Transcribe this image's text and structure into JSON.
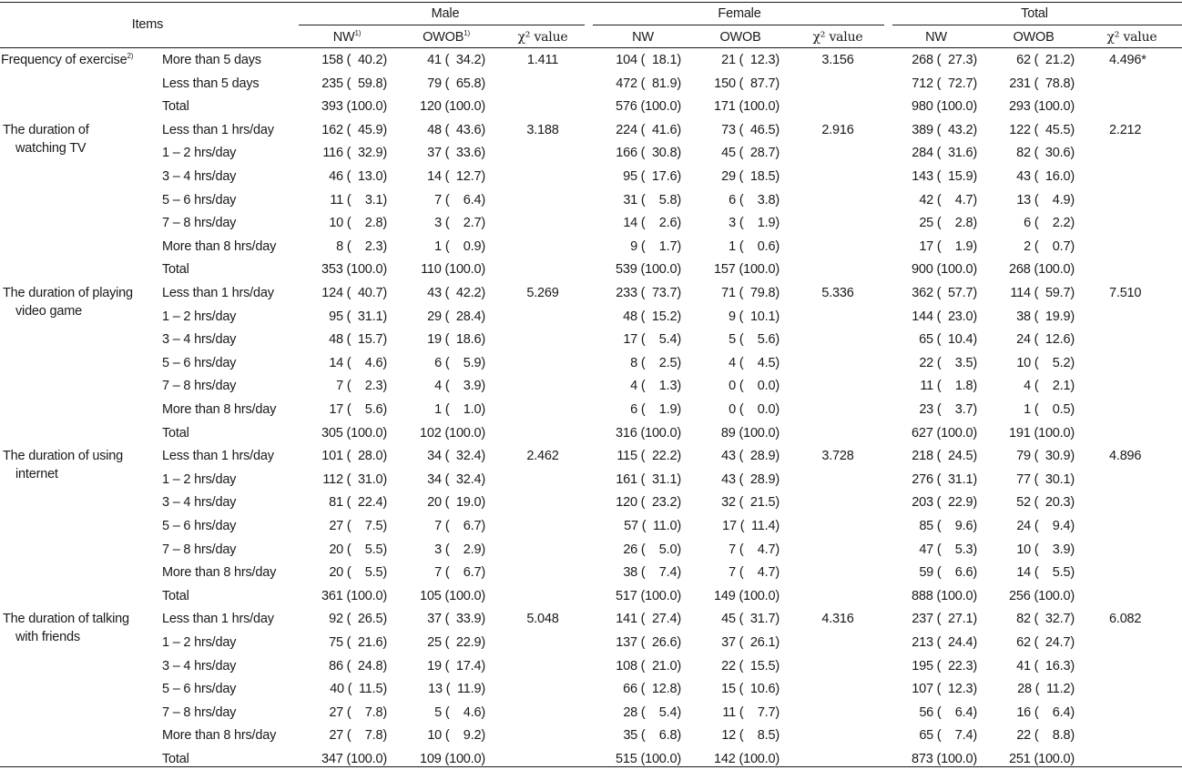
{
  "header": {
    "items_label": "Items",
    "groups": [
      "Male",
      "Female",
      "Total"
    ],
    "sub": {
      "male": [
        "NW",
        "OWOB",
        "χ² value"
      ],
      "female": [
        "NW",
        "OWOB",
        "χ² value"
      ],
      "total": [
        "NW",
        "OWOB",
        "χ² value"
      ]
    },
    "nw_sup": "1)",
    "owob_sup": "1)"
  },
  "sections": [
    {
      "title_lines": [
        "Frequency of exercise"
      ],
      "title_sup": "2)",
      "rows": [
        {
          "label": "More than 5 days",
          "m_nw": "158 (  40.2)",
          "m_ow": "41 (  34.2)",
          "m_chi": "1.411",
          "f_nw": "104 (  18.1)",
          "f_ow": "21 (  12.3)",
          "f_chi": "3.156",
          "t_nw": "268 (  27.3)",
          "t_ow": "62 (  21.2)",
          "t_chi": "4.496*"
        },
        {
          "label": "Less than 5 days",
          "m_nw": "235 (  59.8)",
          "m_ow": "79 (  65.8)",
          "m_chi": "",
          "f_nw": "472 (  81.9)",
          "f_ow": "150 (  87.7)",
          "f_chi": "",
          "t_nw": "712 (  72.7)",
          "t_ow": "231 (  78.8)",
          "t_chi": ""
        },
        {
          "label": "Total",
          "m_nw": "393 (100.0)",
          "m_ow": "120 (100.0)",
          "m_chi": "",
          "f_nw": "576 (100.0)",
          "f_ow": "171 (100.0)",
          "f_chi": "",
          "t_nw": "980 (100.0)",
          "t_ow": "293 (100.0)",
          "t_chi": ""
        }
      ]
    },
    {
      "title_lines": [
        "The duration of",
        "watching TV"
      ],
      "title_sup": "",
      "rows": [
        {
          "label": "Less than 1 hrs/day",
          "m_nw": "162 (  45.9)",
          "m_ow": "48 (  43.6)",
          "m_chi": "3.188",
          "f_nw": "224 (  41.6)",
          "f_ow": "73 (  46.5)",
          "f_chi": "2.916",
          "t_nw": "389 (  43.2)",
          "t_ow": "122 (  45.5)",
          "t_chi": "2.212"
        },
        {
          "label": "1 – 2 hrs/day",
          "m_nw": "116 (  32.9)",
          "m_ow": "37 (  33.6)",
          "m_chi": "",
          "f_nw": "166 (  30.8)",
          "f_ow": "45 (  28.7)",
          "f_chi": "",
          "t_nw": "284 (  31.6)",
          "t_ow": "82 (  30.6)",
          "t_chi": ""
        },
        {
          "label": "3 – 4 hrs/day",
          "m_nw": "46 (  13.0)",
          "m_ow": "14 (  12.7)",
          "m_chi": "",
          "f_nw": "95 (  17.6)",
          "f_ow": "29 (  18.5)",
          "f_chi": "",
          "t_nw": "143 (  15.9)",
          "t_ow": "43 (  16.0)",
          "t_chi": ""
        },
        {
          "label": "5 – 6 hrs/day",
          "m_nw": "11 (    3.1)",
          "m_ow": "7 (    6.4)",
          "m_chi": "",
          "f_nw": "31 (    5.8)",
          "f_ow": "6 (    3.8)",
          "f_chi": "",
          "t_nw": "42 (    4.7)",
          "t_ow": "13 (    4.9)",
          "t_chi": ""
        },
        {
          "label": "7 – 8 hrs/day",
          "m_nw": "10 (    2.8)",
          "m_ow": "3 (    2.7)",
          "m_chi": "",
          "f_nw": "14 (    2.6)",
          "f_ow": "3 (    1.9)",
          "f_chi": "",
          "t_nw": "25 (    2.8)",
          "t_ow": "6 (    2.2)",
          "t_chi": ""
        },
        {
          "label": "More than 8 hrs/day",
          "m_nw": "8 (    2.3)",
          "m_ow": "1 (    0.9)",
          "m_chi": "",
          "f_nw": "9 (    1.7)",
          "f_ow": "1 (    0.6)",
          "f_chi": "",
          "t_nw": "17 (    1.9)",
          "t_ow": "2 (    0.7)",
          "t_chi": ""
        },
        {
          "label": "Total",
          "m_nw": "353 (100.0)",
          "m_ow": "110 (100.0)",
          "m_chi": "",
          "f_nw": "539 (100.0)",
          "f_ow": "157 (100.0)",
          "f_chi": "",
          "t_nw": "900 (100.0)",
          "t_ow": "268 (100.0)",
          "t_chi": ""
        }
      ]
    },
    {
      "title_lines": [
        "The duration of playing",
        "video game"
      ],
      "title_sup": "",
      "rows": [
        {
          "label": "Less than 1 hrs/day",
          "m_nw": "124 (  40.7)",
          "m_ow": "43 (  42.2)",
          "m_chi": "5.269",
          "f_nw": "233 (  73.7)",
          "f_ow": "71 (  79.8)",
          "f_chi": "5.336",
          "t_nw": "362 (  57.7)",
          "t_ow": "114 (  59.7)",
          "t_chi": "7.510"
        },
        {
          "label": "1 – 2 hrs/day",
          "m_nw": "95 (  31.1)",
          "m_ow": "29 (  28.4)",
          "m_chi": "",
          "f_nw": "48 (  15.2)",
          "f_ow": "9 (  10.1)",
          "f_chi": "",
          "t_nw": "144 (  23.0)",
          "t_ow": "38 (  19.9)",
          "t_chi": ""
        },
        {
          "label": "3 – 4 hrs/day",
          "m_nw": "48 (  15.7)",
          "m_ow": "19 (  18.6)",
          "m_chi": "",
          "f_nw": "17 (    5.4)",
          "f_ow": "5 (    5.6)",
          "f_chi": "",
          "t_nw": "65 (  10.4)",
          "t_ow": "24 (  12.6)",
          "t_chi": ""
        },
        {
          "label": "5 – 6 hrs/day",
          "m_nw": "14 (    4.6)",
          "m_ow": "6 (    5.9)",
          "m_chi": "",
          "f_nw": "8 (    2.5)",
          "f_ow": "4 (    4.5)",
          "f_chi": "",
          "t_nw": "22 (    3.5)",
          "t_ow": "10 (    5.2)",
          "t_chi": ""
        },
        {
          "label": "7 – 8 hrs/day",
          "m_nw": "7 (    2.3)",
          "m_ow": "4 (    3.9)",
          "m_chi": "",
          "f_nw": "4 (    1.3)",
          "f_ow": "0 (    0.0)",
          "f_chi": "",
          "t_nw": "11 (    1.8)",
          "t_ow": "4 (    2.1)",
          "t_chi": ""
        },
        {
          "label": "More than 8 hrs/day",
          "m_nw": "17 (    5.6)",
          "m_ow": "1 (    1.0)",
          "m_chi": "",
          "f_nw": "6 (    1.9)",
          "f_ow": "0 (    0.0)",
          "f_chi": "",
          "t_nw": "23 (    3.7)",
          "t_ow": "1 (    0.5)",
          "t_chi": ""
        },
        {
          "label": "Total",
          "m_nw": "305 (100.0)",
          "m_ow": "102 (100.0)",
          "m_chi": "",
          "f_nw": "316 (100.0)",
          "f_ow": "89 (100.0)",
          "f_chi": "",
          "t_nw": "627 (100.0)",
          "t_ow": "191 (100.0)",
          "t_chi": ""
        }
      ]
    },
    {
      "title_lines": [
        "The duration of using",
        "internet"
      ],
      "title_sup": "",
      "rows": [
        {
          "label": "Less than 1 hrs/day",
          "m_nw": "101 (  28.0)",
          "m_ow": "34 (  32.4)",
          "m_chi": "2.462",
          "f_nw": "115 (  22.2)",
          "f_ow": "43 (  28.9)",
          "f_chi": "3.728",
          "t_nw": "218 (  24.5)",
          "t_ow": "79 (  30.9)",
          "t_chi": "4.896"
        },
        {
          "label": "1 – 2 hrs/day",
          "m_nw": "112 (  31.0)",
          "m_ow": "34 (  32.4)",
          "m_chi": "",
          "f_nw": "161 (  31.1)",
          "f_ow": "43 (  28.9)",
          "f_chi": "",
          "t_nw": "276 (  31.1)",
          "t_ow": "77 (  30.1)",
          "t_chi": ""
        },
        {
          "label": "3 – 4 hrs/day",
          "m_nw": "81 (  22.4)",
          "m_ow": "20 (  19.0)",
          "m_chi": "",
          "f_nw": "120 (  23.2)",
          "f_ow": "32 (  21.5)",
          "f_chi": "",
          "t_nw": "203 (  22.9)",
          "t_ow": "52 (  20.3)",
          "t_chi": ""
        },
        {
          "label": "5 – 6 hrs/day",
          "m_nw": "27 (    7.5)",
          "m_ow": "7 (    6.7)",
          "m_chi": "",
          "f_nw": "57 (  11.0)",
          "f_ow": "17 (  11.4)",
          "f_chi": "",
          "t_nw": "85 (    9.6)",
          "t_ow": "24 (    9.4)",
          "t_chi": ""
        },
        {
          "label": "7 – 8 hrs/day",
          "m_nw": "20 (    5.5)",
          "m_ow": "3 (    2.9)",
          "m_chi": "",
          "f_nw": "26 (    5.0)",
          "f_ow": "7 (    4.7)",
          "f_chi": "",
          "t_nw": "47 (    5.3)",
          "t_ow": "10 (    3.9)",
          "t_chi": ""
        },
        {
          "label": "More than 8 hrs/day",
          "m_nw": "20 (    5.5)",
          "m_ow": "7 (    6.7)",
          "m_chi": "",
          "f_nw": "38 (    7.4)",
          "f_ow": "7 (    4.7)",
          "f_chi": "",
          "t_nw": "59 (    6.6)",
          "t_ow": "14 (    5.5)",
          "t_chi": ""
        },
        {
          "label": "Total",
          "m_nw": "361 (100.0)",
          "m_ow": "105 (100.0)",
          "m_chi": "",
          "f_nw": "517 (100.0)",
          "f_ow": "149 (100.0)",
          "f_chi": "",
          "t_nw": "888 (100.0)",
          "t_ow": "256 (100.0)",
          "t_chi": ""
        }
      ]
    },
    {
      "title_lines": [
        "The duration of talking",
        "with friends"
      ],
      "title_sup": "",
      "rows": [
        {
          "label": "Less than 1 hrs/day",
          "m_nw": "92 (  26.5)",
          "m_ow": "37 (  33.9)",
          "m_chi": "5.048",
          "f_nw": "141 (  27.4)",
          "f_ow": "45 (  31.7)",
          "f_chi": "4.316",
          "t_nw": "237 (  27.1)",
          "t_ow": "82 (  32.7)",
          "t_chi": "6.082"
        },
        {
          "label": "1 – 2 hrs/day",
          "m_nw": "75 (  21.6)",
          "m_ow": "25 (  22.9)",
          "m_chi": "",
          "f_nw": "137 (  26.6)",
          "f_ow": "37 (  26.1)",
          "f_chi": "",
          "t_nw": "213 (  24.4)",
          "t_ow": "62 (  24.7)",
          "t_chi": ""
        },
        {
          "label": "3 – 4 hrs/day",
          "m_nw": "86 (  24.8)",
          "m_ow": "19 (  17.4)",
          "m_chi": "",
          "f_nw": "108 (  21.0)",
          "f_ow": "22 (  15.5)",
          "f_chi": "",
          "t_nw": "195 (  22.3)",
          "t_ow": "41 (  16.3)",
          "t_chi": ""
        },
        {
          "label": "5 – 6 hrs/day",
          "m_nw": "40 (  11.5)",
          "m_ow": "13 (  11.9)",
          "m_chi": "",
          "f_nw": "66 (  12.8)",
          "f_ow": "15 (  10.6)",
          "f_chi": "",
          "t_nw": "107 (  12.3)",
          "t_ow": "28 (  11.2)",
          "t_chi": ""
        },
        {
          "label": "7 – 8 hrs/day",
          "m_nw": "27 (    7.8)",
          "m_ow": "5 (    4.6)",
          "m_chi": "",
          "f_nw": "28 (    5.4)",
          "f_ow": "11 (    7.7)",
          "f_chi": "",
          "t_nw": "56 (    6.4)",
          "t_ow": "16 (    6.4)",
          "t_chi": ""
        },
        {
          "label": "More than 8 hrs/day",
          "m_nw": "27 (    7.8)",
          "m_ow": "10 (    9.2)",
          "m_chi": "",
          "f_nw": "35 (    6.8)",
          "f_ow": "12 (    8.5)",
          "f_chi": "",
          "t_nw": "65 (    7.4)",
          "t_ow": "22 (    8.8)",
          "t_chi": ""
        },
        {
          "label": "Total",
          "m_nw": "347 (100.0)",
          "m_ow": "109 (100.0)",
          "m_chi": "",
          "f_nw": "515 (100.0)",
          "f_ow": "142 (100.0)",
          "f_chi": "",
          "t_nw": "873 (100.0)",
          "t_ow": "251 (100.0)",
          "t_chi": ""
        }
      ]
    }
  ]
}
